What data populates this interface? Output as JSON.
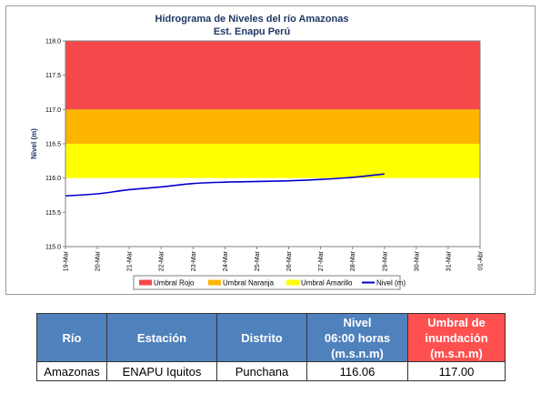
{
  "chart_data": {
    "type": "line",
    "title": "Hidrograma de Niveles del río Amazonas",
    "subtitle": "Est. Enapu Perú",
    "ylabel": "Nivel (m)",
    "xlabel": "",
    "ylim": [
      115.0,
      118.0
    ],
    "yticks": [
      "115.0",
      "115.5",
      "116.0",
      "116.5",
      "117.0",
      "117.5",
      "118.0"
    ],
    "x_ticks": [
      "19-Mar",
      "20-Mar",
      "21-Mar",
      "22-Mar",
      "23-Mar",
      "24-Mar",
      "25-Mar",
      "26-Mar",
      "27-Mar",
      "28-Mar",
      "29-Mar",
      "30-Mar",
      "31-Mar",
      "01-Abr"
    ],
    "bands": [
      {
        "name": "Umbral Rojo",
        "from": 117.0,
        "to": 118.0,
        "color": "#f4484a"
      },
      {
        "name": "Umbral Naranja",
        "from": 116.5,
        "to": 117.0,
        "color": "#fdb500"
      },
      {
        "name": "Umbral Amarillo",
        "from": 116.0,
        "to": 116.5,
        "color": "#ffff00"
      }
    ],
    "series": [
      {
        "name": "Nivel (m)",
        "color": "#0000cc",
        "x": [
          "19-Mar",
          "20-Mar",
          "21-Mar",
          "22-Mar",
          "23-Mar",
          "24-Mar",
          "25-Mar",
          "26-Mar",
          "27-Mar",
          "28-Mar",
          "29-Mar"
        ],
        "values": [
          115.74,
          115.77,
          115.83,
          115.87,
          115.92,
          115.94,
          115.95,
          115.96,
          115.98,
          116.01,
          116.06
        ]
      }
    ],
    "legend": [
      "Umbral Rojo",
      "Umbral Naranja",
      "Umbral Amarillo",
      "Nivel (m)"
    ],
    "legend_position": "bottom",
    "grid": false
  },
  "table": {
    "headers": [
      {
        "lines": [
          "Río"
        ]
      },
      {
        "lines": [
          "Estación"
        ]
      },
      {
        "lines": [
          "Distrito"
        ]
      },
      {
        "lines": [
          "Nivel",
          "06:00 horas",
          "(m.s.n.m)"
        ]
      },
      {
        "lines": [
          "Umbral de",
          "inundación",
          "(m.s.n.m)"
        ]
      }
    ],
    "rows": [
      [
        "Amazonas",
        "ENAPU Iquitos",
        "Punchana",
        "116.06",
        "117.00"
      ]
    ]
  }
}
